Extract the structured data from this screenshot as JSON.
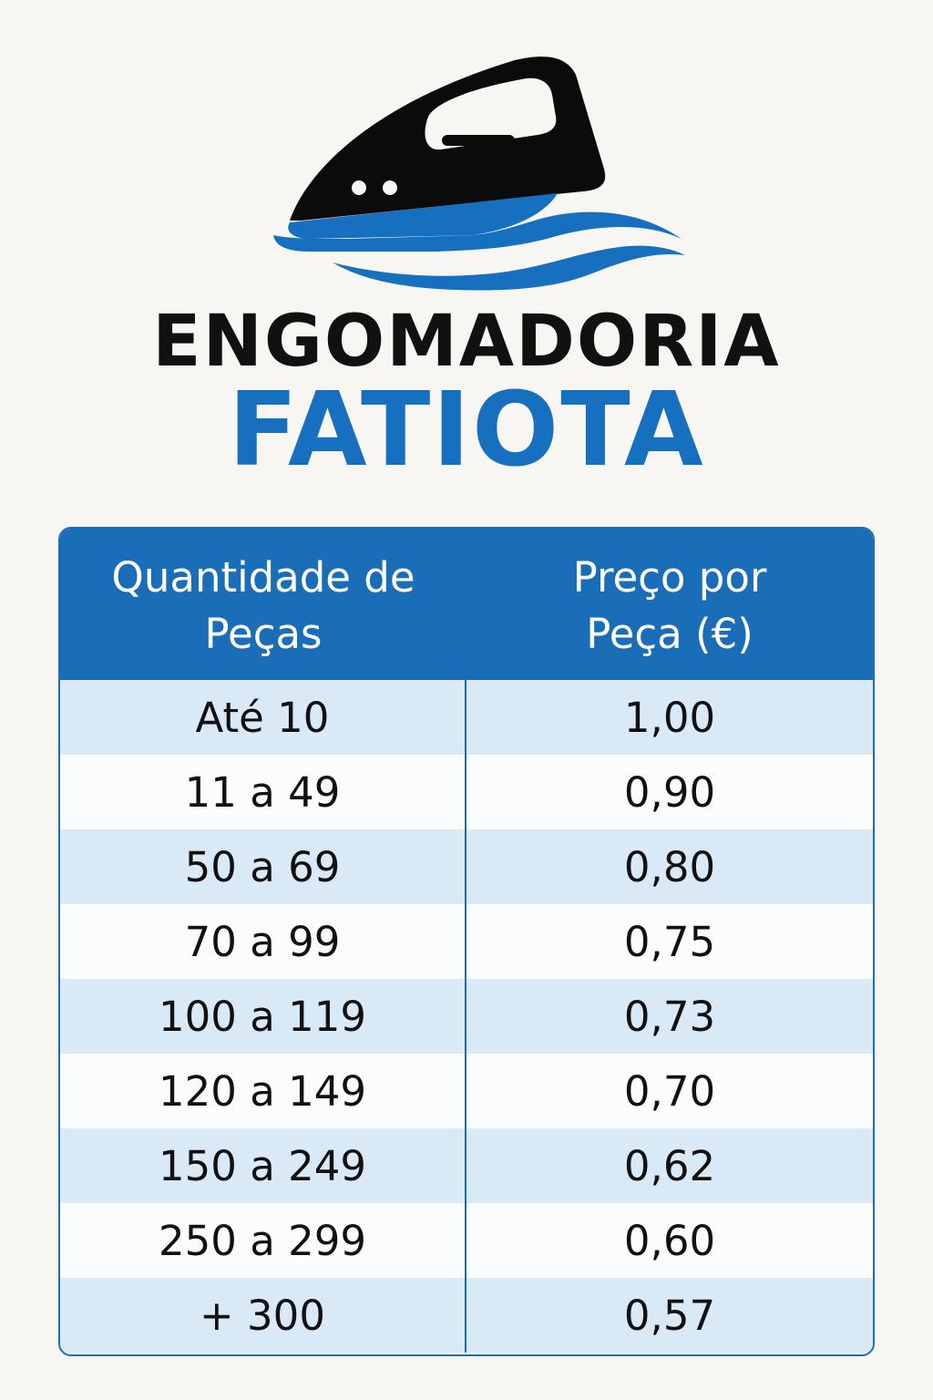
{
  "brand": {
    "line1": "ENGOMADORIA",
    "line2": "FATIOTA",
    "accent_color": "#1670bf",
    "icon": "iron-icon"
  },
  "table": {
    "headers": {
      "quantity_line1": "Quantidade de",
      "quantity_line2": "Peças",
      "price_line1": "Preço por",
      "price_line2": "Peça (€)"
    },
    "rows": [
      {
        "quantity": "Até 10",
        "price": "1,00"
      },
      {
        "quantity": "11 a 49",
        "price": "0,90"
      },
      {
        "quantity": "50 a 69",
        "price": "0,80"
      },
      {
        "quantity": "70 a 99",
        "price": "0,75"
      },
      {
        "quantity": "100 a 119",
        "price": "0,73"
      },
      {
        "quantity": "120 a 149",
        "price": "0,70"
      },
      {
        "quantity": "150 a 249",
        "price": "0,62"
      },
      {
        "quantity": "250 a 299",
        "price": "0,60"
      },
      {
        "quantity": "+ 300",
        "price": "0,57"
      }
    ]
  }
}
